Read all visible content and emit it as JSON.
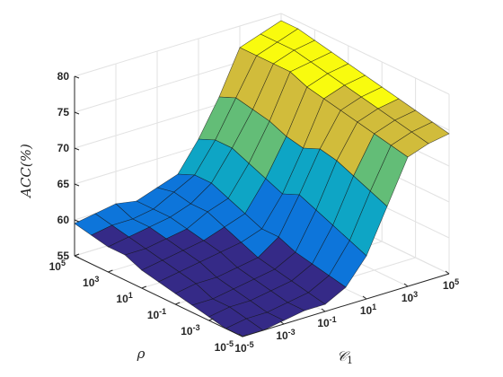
{
  "chart_data": {
    "type": "surface",
    "x_name": "C1",
    "y_name": "rho",
    "xlabel": "𝒞",
    "xlabel_sub": "1",
    "ylabel": "ρ",
    "zlabel": "ACC(%)",
    "x_exponents": [
      -5,
      -4,
      -3,
      -2,
      -1,
      0,
      1,
      2,
      3,
      4,
      5
    ],
    "y_exponents": [
      -5,
      -4,
      -3,
      -2,
      -1,
      0,
      1,
      2,
      3,
      4,
      5
    ],
    "x_tick_exponents": [
      "-5",
      "-3",
      "-1",
      "1",
      "3",
      "5"
    ],
    "y_tick_exponents": [
      "-5",
      "-3",
      "-1",
      "1",
      "3",
      "5"
    ],
    "tick_base": "10",
    "z_ticks": [
      "55",
      "60",
      "65",
      "70",
      "75",
      "80"
    ],
    "zlim": [
      55,
      80
    ],
    "grid": true,
    "colormap": "parula",
    "acc_rows_by_rho_descending": [
      [
        59.5,
        60,
        60.5,
        60,
        61,
        62,
        66,
        71,
        77,
        78,
        79
      ],
      [
        59,
        59.5,
        59.5,
        60,
        61.5,
        63,
        67,
        72,
        77,
        78,
        79
      ],
      [
        58.5,
        59,
        59.5,
        60,
        61,
        63,
        67,
        71.5,
        77,
        78,
        78.5
      ],
      [
        58.5,
        58.5,
        59,
        59.5,
        61,
        62,
        66,
        71,
        77,
        77.5,
        78
      ],
      [
        57.5,
        58,
        58.5,
        59,
        60,
        61,
        65,
        70,
        76,
        77,
        77.5
      ],
      [
        57,
        57.5,
        58,
        58.5,
        59,
        60,
        64,
        69.5,
        75.5,
        76.5,
        77
      ],
      [
        56.5,
        57,
        57,
        57.5,
        58,
        60,
        65,
        70.5,
        75,
        76,
        76.5
      ],
      [
        56,
        56,
        56.5,
        57,
        57.5,
        59,
        64,
        70,
        74.5,
        75.5,
        76
      ],
      [
        55.5,
        56,
        56,
        56.5,
        57,
        58.5,
        63,
        69,
        74,
        75,
        75.5
      ],
      [
        55,
        55.5,
        55.5,
        56,
        56.5,
        58,
        62,
        68,
        73.5,
        74.5,
        75
      ],
      [
        55,
        55,
        55.5,
        56,
        56,
        57.5,
        61,
        67,
        73,
        74,
        74.5
      ]
    ]
  }
}
